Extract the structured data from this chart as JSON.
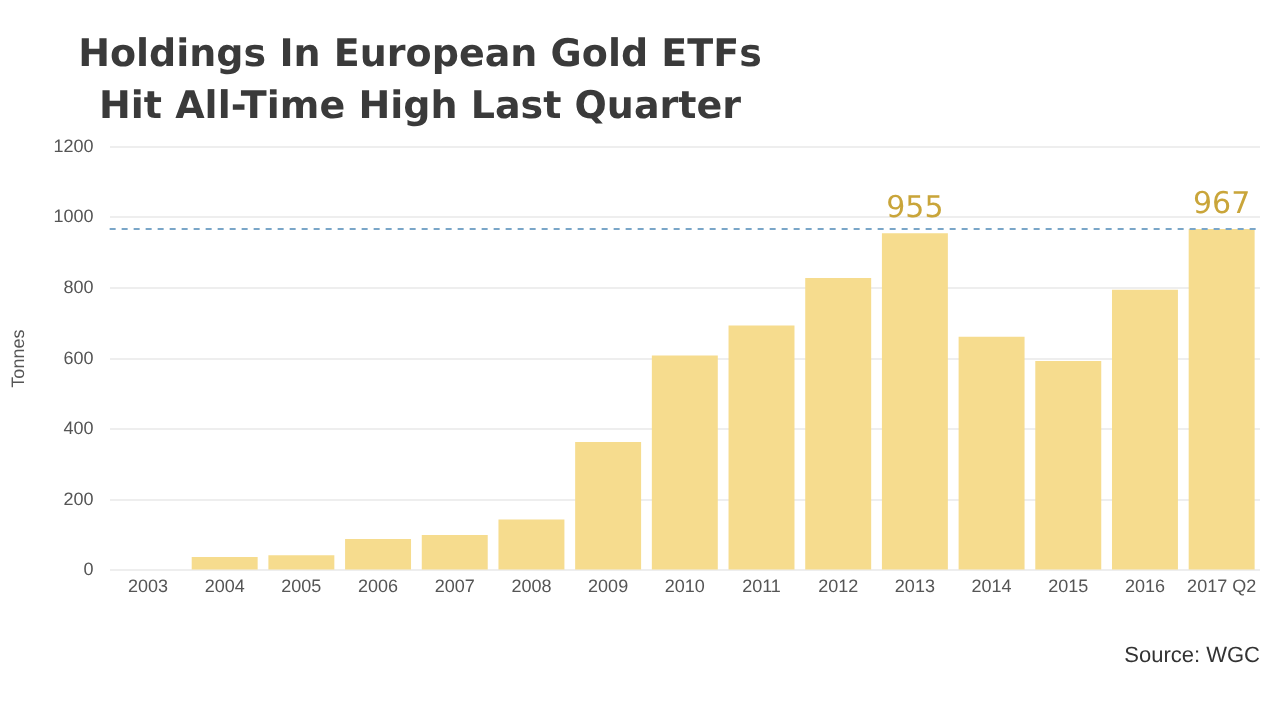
{
  "chart_data": {
    "type": "bar",
    "title": "Holdings In European Gold ETFs Hit All-Time High Last Quarter",
    "ylabel": "Tonnes",
    "categories": [
      "2003",
      "2004",
      "2005",
      "2006",
      "2007",
      "2008",
      "2009",
      "2010",
      "2011",
      "2012",
      "2013",
      "2014",
      "2015",
      "2016",
      "2017 Q2"
    ],
    "values": [
      0,
      38,
      43,
      89,
      100,
      144,
      364,
      609,
      694,
      828,
      955,
      662,
      593,
      795,
      967
    ],
    "value_labels": [
      null,
      null,
      null,
      null,
      null,
      null,
      null,
      null,
      null,
      null,
      "955",
      null,
      null,
      null,
      "967"
    ],
    "color": "#f6dc8e",
    "ylim": [
      0,
      1200
    ],
    "yticks": [
      0,
      200,
      400,
      600,
      800,
      1000,
      1200
    ],
    "grid": "y",
    "legend": false,
    "ref_lines": [
      {
        "axis": "y",
        "value": 967,
        "color": "#7aa6c8",
        "line_style": "dashed"
      }
    ],
    "annotations": [
      "Source: WGC"
    ]
  }
}
